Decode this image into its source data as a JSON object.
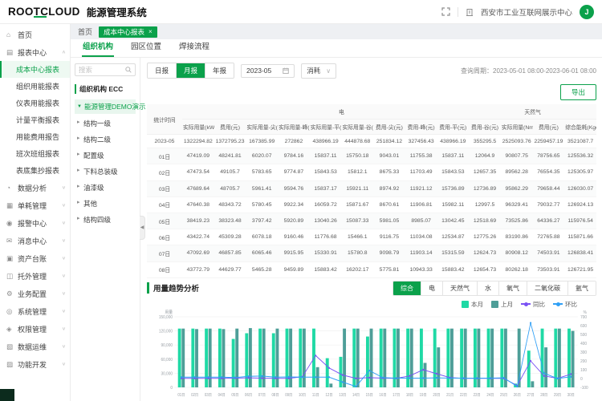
{
  "app": {
    "logo": "ROOTCLOUD",
    "title": "能源管理系统",
    "org": "西安市工业互联网展示中心",
    "avatar": "J"
  },
  "colors": {
    "primary": "#0ba14b",
    "bar_this": "#1fd9a5",
    "bar_last": "#4e9e98",
    "line_yoy": "#7a52f4",
    "line_mom": "#2f9ff5"
  },
  "sidebar": {
    "items": [
      {
        "label": "首页",
        "icon": "home-icon",
        "glyph": "⌂"
      },
      {
        "label": "报表中心",
        "icon": "report-icon",
        "glyph": "▤",
        "expanded": true,
        "children": [
          "成本中心报表",
          "组织用能报表",
          "仪表用能报表",
          "计量平衡报表",
          "用能费用报告",
          "班次班组报表",
          "表底集抄报表"
        ],
        "selected_child": "成本中心报表"
      },
      {
        "label": "数据分析",
        "icon": "analysis-icon",
        "glyph": "◔",
        "collapsible": true
      },
      {
        "label": "单耗管理",
        "icon": "unit-manage-icon",
        "glyph": "▦",
        "collapsible": true
      },
      {
        "label": "报警中心",
        "icon": "alarm-icon",
        "glyph": "◉",
        "collapsible": true
      },
      {
        "label": "消息中心",
        "icon": "message-icon",
        "glyph": "✉",
        "collapsible": true
      },
      {
        "label": "资产台账",
        "icon": "asset-icon",
        "glyph": "▣",
        "collapsible": true
      },
      {
        "label": "托外管理",
        "icon": "outsource-icon",
        "glyph": "◫",
        "collapsible": true
      },
      {
        "label": "业务配置",
        "icon": "business-config-icon",
        "glyph": "⚙",
        "collapsible": true
      },
      {
        "label": "系统管理",
        "icon": "system-icon",
        "glyph": "◎",
        "collapsible": true
      },
      {
        "label": "权限管理",
        "icon": "permission-icon",
        "glyph": "◈",
        "collapsible": true
      },
      {
        "label": "数据运维",
        "icon": "data-ops-icon",
        "glyph": "▧",
        "collapsible": true
      },
      {
        "label": "功能开发",
        "icon": "dev-icon",
        "glyph": "▨",
        "collapsible": true
      }
    ]
  },
  "breadcrumb": {
    "home": "首页",
    "tag": "成本中心报表",
    "tag_close": "×"
  },
  "tabs": {
    "items": [
      "组织机构",
      "园区位置",
      "焊接流程"
    ],
    "active": "组织机构"
  },
  "tree": {
    "search_placeholder": "搜索",
    "root_label": "组织机构 ECC",
    "selected": "能源管理DEMO演示",
    "children": [
      "结构一级",
      "结构二级",
      "配置级",
      "下料总装级",
      "油漆级",
      "其他",
      "结构四级"
    ]
  },
  "filters": {
    "report_types": [
      "日报",
      "月报",
      "年报"
    ],
    "active_report": "月报",
    "month": "2023-05",
    "metric": "消耗",
    "query_label": "查询周期：",
    "query_period": "2023-05-01 08:00-2023-06-01 08:00",
    "export_label": "导出"
  },
  "table": {
    "groups": [
      {
        "label": "统计时间",
        "rowspan": 2
      },
      {
        "label": "电",
        "colspan": 10
      },
      {
        "label": "天然气",
        "colspan": 2
      },
      {
        "label": "",
        "colspan": 1
      }
    ],
    "columns": [
      "实际用量(kWh)",
      "费用(元)",
      "实际用量-尖(kWh)",
      "实际用量-峰(kWh)",
      "实际用量-平(kWh)",
      "实际用量-谷(kWh)",
      "费用-尖(元)",
      "费用-峰(元)",
      "费用-平(元)",
      "费用-谷(元)",
      "实际用量(Nm³)",
      "费用(元)",
      "综合能耗(Kgce)"
    ],
    "rows": [
      {
        "date": "2023-05",
        "values": [
          "1322294.82",
          "1372795.23",
          "167385.99",
          "272862",
          "438966.19",
          "444878.68",
          "251834.12",
          "327456.43",
          "438966.19",
          "355295.5",
          "2525093.76",
          "2259457.19",
          "3521087.7"
        ]
      },
      {
        "date": "01日",
        "values": [
          "47419.09",
          "48241.81",
          "6020.07",
          "9784.16",
          "15837.11",
          "15750.18",
          "9043.01",
          "11755.38",
          "15837.11",
          "12064.9",
          "90807.75",
          "78756.65",
          "125536.32"
        ]
      },
      {
        "date": "02日",
        "values": [
          "47473.54",
          "49105.7",
          "5783.65",
          "9774.87",
          "15843.53",
          "15812.1",
          "8675.33",
          "11703.49",
          "15843.53",
          "12657.35",
          "89562.28",
          "76554.35",
          "125305.97"
        ]
      },
      {
        "date": "03日",
        "values": [
          "47689.64",
          "48705.7",
          "5961.41",
          "9594.76",
          "15837.17",
          "15921.11",
          "8974.92",
          "11921.12",
          "15736.89",
          "12736.89",
          "95862.29",
          "79658.44",
          "126030.07"
        ]
      },
      {
        "date": "04日",
        "values": [
          "47640.38",
          "48343.72",
          "5780.45",
          "9922.34",
          "16059.72",
          "15871.67",
          "8670.61",
          "11906.81",
          "15982.11",
          "12997.5",
          "96329.41",
          "79032.77",
          "126924.13"
        ]
      },
      {
        "date": "05日",
        "values": [
          "38419.23",
          "38323.48",
          "3797.42",
          "5920.89",
          "13040.26",
          "15087.33",
          "5981.05",
          "8985.07",
          "13042.45",
          "12518.69",
          "73525.86",
          "64336.27",
          "115976.54"
        ]
      },
      {
        "date": "06日",
        "values": [
          "43422.74",
          "45309.28",
          "6078.18",
          "9160.46",
          "11776.68",
          "15466.1",
          "9116.75",
          "11034.08",
          "12534.87",
          "12775.26",
          "83190.86",
          "72765.88",
          "115871.66"
        ]
      },
      {
        "date": "07日",
        "values": [
          "47092.69",
          "46857.85",
          "6065.46",
          "9915.95",
          "15330.91",
          "15780.8",
          "9098.79",
          "11903.14",
          "15315.59",
          "12624.73",
          "80908.12",
          "74503.91",
          "126838.41"
        ]
      },
      {
        "date": "08日",
        "values": [
          "43772.79",
          "44629.77",
          "5465.28",
          "9459.89",
          "15883.42",
          "16202.17",
          "5775.81",
          "10943.33",
          "15883.42",
          "12654.73",
          "80262.18",
          "73503.91",
          "126721.95"
        ]
      }
    ]
  },
  "trend": {
    "title": "用量趋势分析",
    "type_buttons": [
      "综合",
      "电",
      "天然气",
      "水",
      "氧气",
      "二氧化碳",
      "氩气"
    ],
    "active_type": "综合"
  },
  "chart_data": {
    "type": "bar",
    "subtype": "bar+line dual axis",
    "title": "用量趋势分析",
    "categories": [
      "01日",
      "02日",
      "03日",
      "04日",
      "05日",
      "06日",
      "07日",
      "08日",
      "09日",
      "10日",
      "11日",
      "12日",
      "13日",
      "14日",
      "15日",
      "16日",
      "17日",
      "18日",
      "19日",
      "20日",
      "21日",
      "22日",
      "23日",
      "24日",
      "25日",
      "26日",
      "27日",
      "28日",
      "29日",
      "30日"
    ],
    "series": [
      {
        "name": "本月",
        "type": "bar",
        "axis": "left",
        "color": "#1fd9a5",
        "values": [
          125000,
          125000,
          125000,
          125000,
          103000,
          115000,
          125000,
          115000,
          125000,
          125000,
          125000,
          62000,
          65000,
          125000,
          108000,
          125000,
          125000,
          125000,
          125000,
          125000,
          125000,
          125000,
          125000,
          125000,
          125000,
          8000,
          78000,
          125000,
          125000,
          125000
        ]
      },
      {
        "name": "上月",
        "type": "bar",
        "axis": "left",
        "color": "#4e9e98",
        "values": [
          125000,
          124000,
          125000,
          124000,
          125000,
          126000,
          125000,
          125000,
          125000,
          125000,
          43000,
          8000,
          125000,
          125000,
          125000,
          125000,
          125000,
          125000,
          52000,
          85000,
          125000,
          125000,
          125000,
          125000,
          125000,
          125000,
          13000,
          85000,
          125000,
          120000
        ]
      },
      {
        "name": "同比",
        "type": "line",
        "axis": "right",
        "color": "#7a52f4",
        "values": [
          2,
          2,
          2,
          2,
          5,
          8,
          5,
          3,
          2,
          20,
          260,
          120,
          40,
          2,
          10,
          5,
          2,
          30,
          100,
          55,
          10,
          2,
          2,
          2,
          2,
          -80,
          200,
          30,
          2,
          50
        ]
      },
      {
        "name": "环比",
        "type": "line",
        "axis": "right",
        "color": "#2f9ff5",
        "values": [
          15,
          15,
          15,
          15,
          12,
          25,
          28,
          15,
          18,
          15,
          15,
          15,
          -40,
          -90,
          90,
          10,
          5,
          5,
          5,
          8,
          5,
          5,
          5,
          5,
          8,
          -90,
          630,
          60,
          0,
          20
        ]
      }
    ],
    "ylabel_left": "用量",
    "ylabel_right": "%",
    "ylim_left": [
      0,
      150000
    ],
    "yticks_left": [
      0,
      30000,
      60000,
      90000,
      120000,
      150000
    ],
    "ylim_right": [
      -100,
      700
    ],
    "yticks_right": [
      -100,
      0,
      100,
      200,
      300,
      400,
      500,
      600,
      700
    ],
    "grid": true,
    "legend_position": "top-right"
  }
}
